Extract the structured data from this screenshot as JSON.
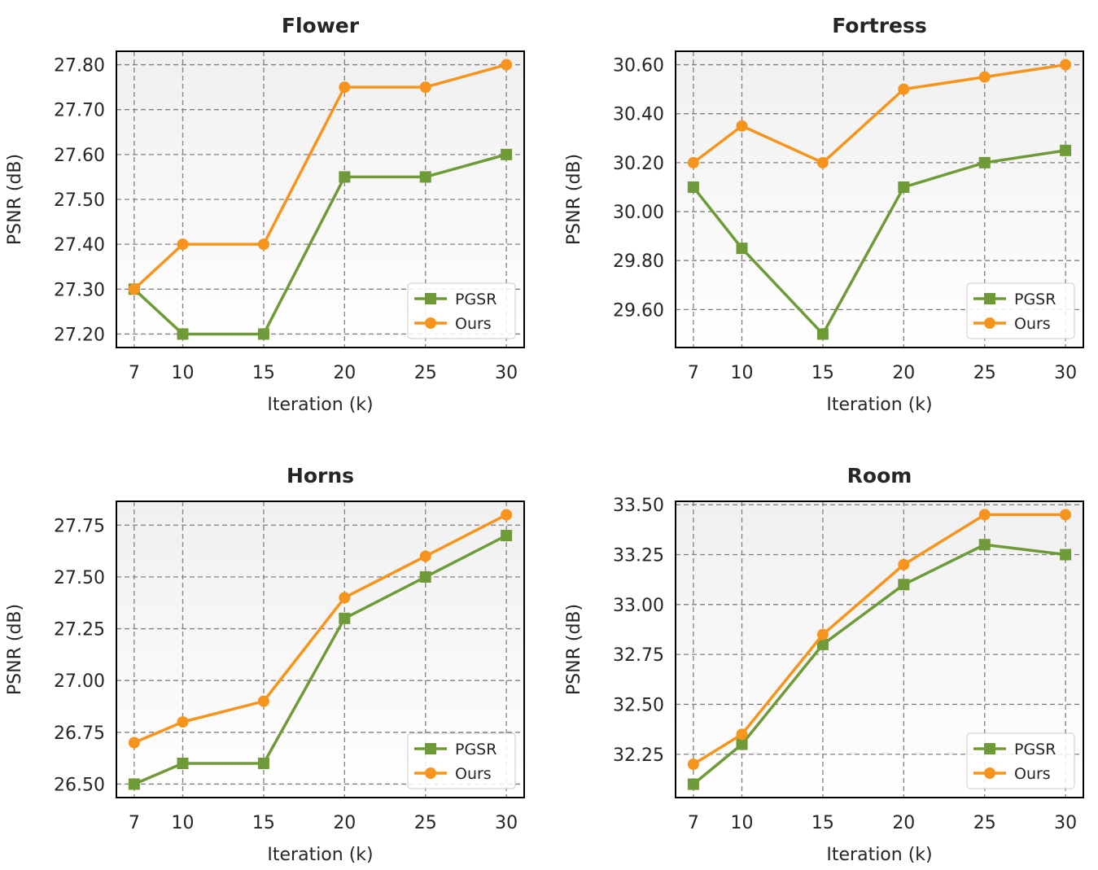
{
  "colors": {
    "PGSR": "#6e9a37",
    "Ours": "#f7941d"
  },
  "chart_data": [
    {
      "type": "line",
      "title": "Flower",
      "xlabel": "Iteration (k)",
      "ylabel": "PSNR (dB)",
      "x": [
        7,
        10,
        15,
        20,
        25,
        30
      ],
      "xticks": [
        "7",
        "10",
        "15",
        "20",
        "25",
        "30"
      ],
      "xlim": [
        5.9,
        31.1
      ],
      "ylim": [
        27.17,
        27.83
      ],
      "yticks": [
        27.2,
        27.3,
        27.4,
        27.5,
        27.6,
        27.7,
        27.8
      ],
      "ytick_labels": [
        "27.20",
        "27.30",
        "27.40",
        "27.50",
        "27.60",
        "27.70",
        "27.80"
      ],
      "grid": true,
      "legend": "lower-right",
      "series": [
        {
          "name": "PGSR",
          "marker": "square",
          "values": [
            27.3,
            27.2,
            27.2,
            27.55,
            27.55,
            27.6
          ]
        },
        {
          "name": "Ours",
          "marker": "circle",
          "values": [
            27.3,
            27.4,
            27.4,
            27.75,
            27.75,
            27.8
          ]
        }
      ]
    },
    {
      "type": "line",
      "title": "Fortress",
      "xlabel": "Iteration (k)",
      "ylabel": "PSNR (dB)",
      "x": [
        7,
        10,
        15,
        20,
        25,
        30
      ],
      "xticks": [
        "7",
        "10",
        "15",
        "20",
        "25",
        "30"
      ],
      "xlim": [
        5.9,
        31.1
      ],
      "ylim": [
        29.445,
        30.655
      ],
      "yticks": [
        29.6,
        29.8,
        30.0,
        30.2,
        30.4,
        30.6
      ],
      "ytick_labels": [
        "29.60",
        "29.80",
        "30.00",
        "30.20",
        "30.40",
        "30.60"
      ],
      "grid": true,
      "legend": "lower-right",
      "series": [
        {
          "name": "PGSR",
          "marker": "square",
          "values": [
            30.1,
            29.85,
            29.5,
            30.1,
            30.2,
            30.25
          ]
        },
        {
          "name": "Ours",
          "marker": "circle",
          "values": [
            30.2,
            30.35,
            30.2,
            30.5,
            30.55,
            30.6
          ]
        }
      ]
    },
    {
      "type": "line",
      "title": "Horns",
      "xlabel": "Iteration (k)",
      "ylabel": "PSNR (dB)",
      "x": [
        7,
        10,
        15,
        20,
        25,
        30
      ],
      "xticks": [
        "7",
        "10",
        "15",
        "20",
        "25",
        "30"
      ],
      "xlim": [
        5.9,
        31.1
      ],
      "ylim": [
        26.435,
        27.865
      ],
      "yticks": [
        26.5,
        26.75,
        27.0,
        27.25,
        27.5,
        27.75
      ],
      "ytick_labels": [
        "26.50",
        "26.75",
        "27.00",
        "27.25",
        "27.50",
        "27.75"
      ],
      "grid": true,
      "legend": "lower-right",
      "series": [
        {
          "name": "PGSR",
          "marker": "square",
          "values": [
            26.5,
            26.6,
            26.6,
            27.3,
            27.5,
            27.7
          ]
        },
        {
          "name": "Ours",
          "marker": "circle",
          "values": [
            26.7,
            26.8,
            26.9,
            27.4,
            27.6,
            27.8
          ]
        }
      ]
    },
    {
      "type": "line",
      "title": "Room",
      "xlabel": "Iteration (k)",
      "ylabel": "PSNR (dB)",
      "x": [
        7,
        10,
        15,
        20,
        25,
        30
      ],
      "xticks": [
        "7",
        "10",
        "15",
        "20",
        "25",
        "30"
      ],
      "xlim": [
        5.9,
        31.1
      ],
      "ylim": [
        32.033,
        33.517
      ],
      "yticks": [
        32.25,
        32.5,
        32.75,
        33.0,
        33.25,
        33.5
      ],
      "ytick_labels": [
        "32.25",
        "32.50",
        "32.75",
        "33.00",
        "33.25",
        "33.50"
      ],
      "grid": true,
      "legend": "lower-right",
      "series": [
        {
          "name": "PGSR",
          "marker": "square",
          "values": [
            32.1,
            32.3,
            32.8,
            33.1,
            33.3,
            33.25
          ]
        },
        {
          "name": "Ours",
          "marker": "circle",
          "values": [
            32.2,
            32.35,
            32.85,
            33.2,
            33.45,
            33.45
          ]
        }
      ]
    }
  ]
}
